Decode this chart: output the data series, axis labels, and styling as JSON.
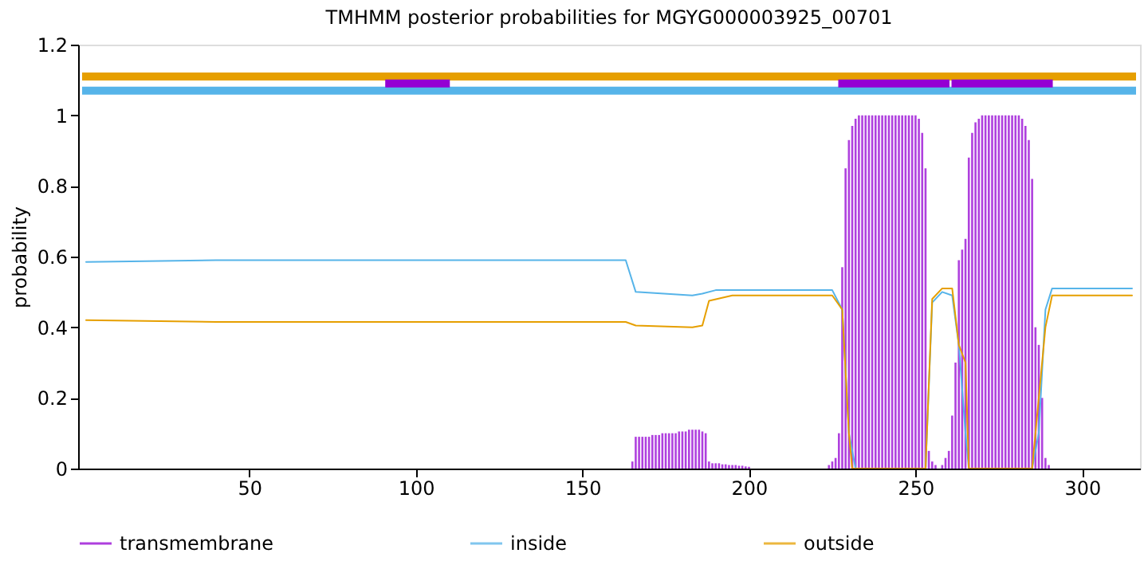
{
  "chart_data": {
    "type": "line",
    "title": "TMHMM posterior probabilities for MGYG000003925_00701",
    "ylabel": "probability",
    "xlim": [
      1,
      315
    ],
    "ylim": [
      0,
      1.2
    ],
    "xticks": [
      50,
      100,
      150,
      200,
      250,
      300
    ],
    "yticks": [
      0,
      0.2,
      0.4,
      0.6,
      0.8,
      1,
      1.2
    ],
    "grid": false,
    "legend": "bottom",
    "series": [
      {
        "name": "transmembrane",
        "type": "bar",
        "color": "#9400d3",
        "x": [
          165,
          166,
          167,
          168,
          169,
          170,
          171,
          172,
          173,
          174,
          175,
          176,
          177,
          178,
          179,
          180,
          181,
          182,
          183,
          184,
          185,
          186,
          187,
          188,
          189,
          190,
          191,
          192,
          193,
          194,
          195,
          196,
          197,
          198,
          199,
          200,
          224,
          225,
          226,
          227,
          228,
          229,
          230,
          231,
          232,
          233,
          234,
          235,
          236,
          237,
          238,
          239,
          240,
          241,
          242,
          243,
          244,
          245,
          246,
          247,
          248,
          249,
          250,
          251,
          252,
          253,
          254,
          255,
          256,
          258,
          259,
          260,
          261,
          262,
          263,
          264,
          265,
          266,
          267,
          268,
          269,
          270,
          271,
          272,
          273,
          274,
          275,
          276,
          277,
          278,
          279,
          280,
          281,
          282,
          283,
          284,
          285,
          286,
          287,
          288,
          289,
          290
        ],
        "values": [
          0.02,
          0.09,
          0.09,
          0.09,
          0.09,
          0.09,
          0.095,
          0.095,
          0.095,
          0.1,
          0.1,
          0.1,
          0.1,
          0.1,
          0.105,
          0.105,
          0.105,
          0.11,
          0.11,
          0.11,
          0.11,
          0.105,
          0.1,
          0.02,
          0.015,
          0.015,
          0.015,
          0.012,
          0.012,
          0.01,
          0.01,
          0.01,
          0.008,
          0.008,
          0.006,
          0.005,
          0.01,
          0.02,
          0.03,
          0.1,
          0.57,
          0.85,
          0.93,
          0.97,
          0.99,
          1,
          1,
          1,
          1,
          1,
          1,
          1,
          1,
          1,
          1,
          1,
          1,
          1,
          1,
          1,
          1,
          1,
          1,
          0.99,
          0.95,
          0.85,
          0.05,
          0.02,
          0.01,
          0.01,
          0.03,
          0.05,
          0.15,
          0.3,
          0.59,
          0.62,
          0.65,
          0.88,
          0.95,
          0.98,
          0.99,
          1,
          1,
          1,
          1,
          1,
          1,
          1,
          1,
          1,
          1,
          1,
          1,
          0.99,
          0.97,
          0.93,
          0.82,
          0.4,
          0.35,
          0.2,
          0.03,
          0.01
        ]
      },
      {
        "name": "inside",
        "color": "#56b4e9",
        "x": [
          1,
          40,
          163,
          166,
          183,
          186,
          190,
          225,
          228,
          230,
          232,
          253,
          255,
          258,
          261,
          263,
          265,
          266,
          285,
          287,
          289,
          291,
          315
        ],
        "values": [
          0.585,
          0.59,
          0.59,
          0.5,
          0.49,
          0.495,
          0.505,
          0.505,
          0.45,
          0.1,
          0,
          0,
          0.47,
          0.5,
          0.49,
          0.35,
          0.1,
          0,
          0,
          0.1,
          0.45,
          0.51,
          0.51
        ]
      },
      {
        "name": "outside",
        "color": "#e69f00",
        "x": [
          1,
          40,
          163,
          166,
          183,
          186,
          188,
          195,
          225,
          228,
          230,
          231,
          253,
          255,
          258,
          261,
          263,
          265,
          266,
          285,
          287,
          289,
          291,
          315
        ],
        "values": [
          0.42,
          0.415,
          0.415,
          0.405,
          0.4,
          0.405,
          0.475,
          0.49,
          0.49,
          0.45,
          0.1,
          0,
          0,
          0.48,
          0.51,
          0.51,
          0.35,
          0.3,
          0,
          0,
          0.2,
          0.4,
          0.49,
          0.49
        ]
      },
      {
        "color": "#e69f00",
        "x": [
          1,
          315
        ],
        "values": [
          1.11,
          1.11
        ]
      },
      {
        "color": "#56b4e9",
        "x": [
          1,
          315
        ],
        "values": [
          1.07,
          1.07
        ]
      },
      {
        "color": "#9400d3",
        "x": [
          92,
          109,
          110,
          228,
          259,
          260,
          262,
          290
        ],
        "values": [
          1.09,
          1.09,
          null,
          1.09,
          1.09,
          null,
          1.09,
          1.09
        ]
      }
    ]
  }
}
